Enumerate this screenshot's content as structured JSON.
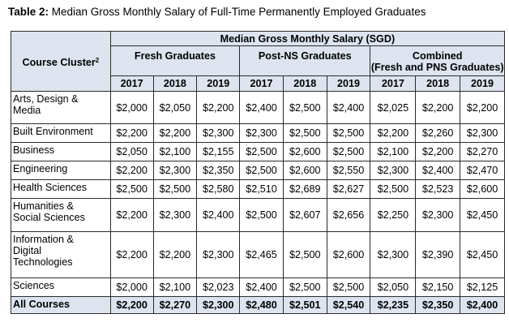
{
  "caption": {
    "label": "Table 2:",
    "text": " Median Gross Monthly Salary of Full-Time Permanently Employed Graduates"
  },
  "header": {
    "course_cluster": "Course Cluster",
    "course_cluster_sup": "2",
    "top": "Median Gross Monthly Salary (SGD)",
    "groups": [
      "Fresh Graduates",
      "Post-NS Graduates",
      "Combined\n(Fresh and PNS Graduates)"
    ],
    "years": [
      "2017",
      "2018",
      "2019",
      "2017",
      "2018",
      "2019",
      "2017",
      "2018",
      "2019"
    ]
  },
  "rows": [
    {
      "cluster": "Arts, Design &\nMedia",
      "values": [
        "$2,000",
        "$2,050",
        "$2,200",
        "$2,400",
        "$2,500",
        "$2,400",
        "$2,025",
        "$2,200",
        "$2,200"
      ],
      "h": 40
    },
    {
      "cluster": "Built Environment",
      "values": [
        "$2,200",
        "$2,200",
        "$2,300",
        "$2,300",
        "$2,500",
        "$2,500",
        "$2,200",
        "$2,260",
        "$2,300"
      ],
      "h": 23
    },
    {
      "cluster": "Business",
      "values": [
        "$2,050",
        "$2,100",
        "$2,155",
        "$2,500",
        "$2,600",
        "$2,500",
        "$2,100",
        "$2,200",
        "$2,270"
      ],
      "h": 23
    },
    {
      "cluster": "Engineering",
      "values": [
        "$2,200",
        "$2,300",
        "$2,350",
        "$2,500",
        "$2,600",
        "$2,550",
        "$2,300",
        "$2,400",
        "$2,470"
      ],
      "h": 23
    },
    {
      "cluster": "Health Sciences",
      "values": [
        "$2,500",
        "$2,500",
        "$2,580",
        "$2,510",
        "$2,689",
        "$2,627",
        "$2,500",
        "$2,523",
        "$2,600"
      ],
      "h": 23
    },
    {
      "cluster": "Humanities &\nSocial Sciences",
      "values": [
        "$2,200",
        "$2,300",
        "$2,400",
        "$2,500",
        "$2,607",
        "$2,656",
        "$2,250",
        "$2,300",
        "$2,450"
      ],
      "h": 41
    },
    {
      "cluster": "Information &\nDigital\nTechnologies",
      "values": [
        "$2,200",
        "$2,200",
        "$2,300",
        "$2,465",
        "$2,500",
        "$2,600",
        "$2,300",
        "$2,390",
        "$2,450"
      ],
      "h": 57
    },
    {
      "cluster": "Sciences",
      "values": [
        "$2,000",
        "$2,100",
        "$2,023",
        "$2,400",
        "$2,500",
        "$2,500",
        "$2,050",
        "$2,150",
        "$2,125"
      ],
      "h": 23
    },
    {
      "cluster": "All Courses",
      "values": [
        "$2,200",
        "$2,270",
        "$2,300",
        "$2,480",
        "$2,501",
        "$2,540",
        "$2,235",
        "$2,350",
        "$2,400"
      ],
      "h": 21,
      "total": true
    }
  ]
}
